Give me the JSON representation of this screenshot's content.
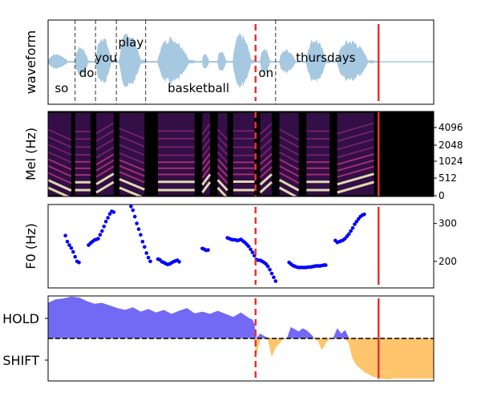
{
  "colors": {
    "waveform": "#a6c8e0",
    "word_boundary": "#333333",
    "dashed_marker": "#e8322f",
    "solid_marker": "#e8322f",
    "f0_points": "#0000ff",
    "hold_fill": "#6b63f5",
    "shift_fill": "#ffc266",
    "baseline": "#000000",
    "spec_dark": "#000000",
    "spec_mid": "#b5367a",
    "spec_bright": "#fcfdbf"
  },
  "chart_data": [
    {
      "type": "line",
      "panel": "waveform",
      "ylabel": "waveform",
      "x_range": [
        0,
        1
      ],
      "dashed_marker_x": 0.538,
      "solid_marker_x": 0.857,
      "word_boundaries": [
        0.07,
        0.123,
        0.177,
        0.253,
        0.59
      ],
      "words": [
        {
          "text": "so",
          "x": 0.035,
          "level": "low"
        },
        {
          "text": "do",
          "x": 0.1,
          "level": "mid"
        },
        {
          "text": "you",
          "x": 0.15,
          "level": "high"
        },
        {
          "text": "play",
          "x": 0.215,
          "level": "top"
        },
        {
          "text": "basketball",
          "x": 0.39,
          "level": "low"
        },
        {
          "text": "on",
          "x": 0.565,
          "level": "mid"
        },
        {
          "text": "thursdays",
          "x": 0.72,
          "level": "high"
        }
      ],
      "segments": [
        [
          0.0,
          0.06,
          0.25
        ],
        [
          0.07,
          0.11,
          0.5
        ],
        [
          0.125,
          0.17,
          0.85
        ],
        [
          0.185,
          0.25,
          0.95
        ],
        [
          0.285,
          0.38,
          0.8
        ],
        [
          0.4,
          0.42,
          0.3
        ],
        [
          0.44,
          0.465,
          0.35
        ],
        [
          0.48,
          0.535,
          0.9
        ],
        [
          0.55,
          0.58,
          0.45
        ],
        [
          0.6,
          0.65,
          0.4
        ],
        [
          0.67,
          0.73,
          0.75
        ],
        [
          0.75,
          0.845,
          0.7
        ]
      ]
    },
    {
      "type": "heatmap",
      "panel": "mel_spectrogram",
      "ylabel": "Mel (Hz)",
      "yticks": [
        "0",
        "512",
        "1024",
        "2048",
        "4096"
      ],
      "active_until_x": 0.87,
      "dashed_marker_x": 0.538,
      "solid_marker_x": 0.857
    },
    {
      "type": "scatter",
      "panel": "f0",
      "ylabel": "F0 (Hz)",
      "ylim": [
        130,
        350
      ],
      "yticks": [
        200,
        300
      ],
      "dashed_marker_x": 0.538,
      "solid_marker_x": 0.857,
      "series": [
        {
          "x": [
            0.045,
            0.05,
            0.055,
            0.06,
            0.065,
            0.07,
            0.075,
            0.08
          ],
          "y": [
            268,
            252,
            243,
            235,
            225,
            212,
            200,
            197
          ]
        },
        {
          "x": [
            0.105,
            0.11,
            0.115,
            0.12,
            0.125,
            0.13,
            0.135,
            0.14,
            0.145,
            0.15,
            0.155,
            0.16,
            0.165,
            0.17
          ],
          "y": [
            243,
            248,
            252,
            256,
            258,
            260,
            270,
            280,
            292,
            305,
            315,
            325,
            332,
            330
          ]
        },
        {
          "x": [
            0.215,
            0.22,
            0.225,
            0.23,
            0.235,
            0.24,
            0.245,
            0.25,
            0.255,
            0.26,
            0.265
          ],
          "y": [
            345,
            335,
            318,
            300,
            285,
            270,
            252,
            238,
            222,
            210,
            200
          ]
        },
        {
          "x": [
            0.285,
            0.29,
            0.295,
            0.3,
            0.305,
            0.31,
            0.315,
            0.32,
            0.325,
            0.33,
            0.335,
            0.34
          ],
          "y": [
            206,
            204,
            199,
            197,
            194,
            192,
            193,
            196,
            199,
            201,
            203,
            199
          ]
        },
        {
          "x": [
            0.4,
            0.405,
            0.41,
            0.415
          ],
          "y": [
            234,
            232,
            229,
            230
          ]
        },
        {
          "x": [
            0.465,
            0.47,
            0.475,
            0.48,
            0.485,
            0.49,
            0.495,
            0.5,
            0.505,
            0.51,
            0.515,
            0.52,
            0.525,
            0.53,
            0.535
          ],
          "y": [
            262,
            260,
            258,
            257,
            257,
            255,
            256,
            258,
            254,
            250,
            245,
            240,
            232,
            224,
            215
          ]
        },
        {
          "x": [
            0.54,
            0.545,
            0.55,
            0.555,
            0.56,
            0.565,
            0.57,
            0.575,
            0.58,
            0.585,
            0.59
          ],
          "y": [
            205,
            203,
            203,
            200,
            197,
            193,
            187,
            178,
            168,
            158,
            148
          ]
        },
        {
          "x": [
            0.625,
            0.63,
            0.635,
            0.64,
            0.645,
            0.65,
            0.655,
            0.66,
            0.665,
            0.67,
            0.675,
            0.68,
            0.685,
            0.69,
            0.695,
            0.7,
            0.705,
            0.71,
            0.715,
            0.72
          ],
          "y": [
            197,
            193,
            189,
            187,
            185,
            184,
            184,
            184,
            184,
            184,
            185,
            185,
            186,
            187,
            188,
            188,
            188,
            189,
            190,
            190
          ]
        },
        {
          "x": [
            0.745,
            0.75,
            0.755,
            0.76,
            0.765,
            0.77,
            0.775,
            0.78,
            0.785,
            0.79,
            0.795,
            0.8,
            0.805,
            0.81,
            0.815,
            0.82
          ],
          "y": [
            255,
            250,
            252,
            254,
            256,
            260,
            266,
            272,
            280,
            288,
            298,
            305,
            312,
            318,
            322,
            324
          ]
        }
      ]
    },
    {
      "type": "area",
      "panel": "turn_taking",
      "yticks": [
        "HOLD",
        "SHIFT"
      ],
      "ylim": [
        -1,
        1
      ],
      "dashed_marker_x": 0.538,
      "solid_marker_x": 0.857,
      "x": [
        0.0,
        0.02,
        0.04,
        0.06,
        0.08,
        0.1,
        0.12,
        0.14,
        0.16,
        0.18,
        0.2,
        0.22,
        0.24,
        0.26,
        0.28,
        0.3,
        0.32,
        0.34,
        0.36,
        0.38,
        0.4,
        0.42,
        0.44,
        0.46,
        0.48,
        0.5,
        0.52,
        0.53,
        0.535,
        0.54,
        0.55,
        0.56,
        0.57,
        0.58,
        0.59,
        0.6,
        0.61,
        0.62,
        0.63,
        0.64,
        0.65,
        0.66,
        0.67,
        0.68,
        0.69,
        0.7,
        0.71,
        0.72,
        0.73,
        0.74,
        0.75,
        0.76,
        0.77,
        0.78,
        0.79,
        0.8,
        0.82,
        0.84,
        0.86,
        0.88,
        0.9,
        0.92,
        0.94,
        0.96,
        0.98,
        1.0
      ],
      "values": [
        0.8,
        0.88,
        0.9,
        0.94,
        0.92,
        0.84,
        0.78,
        0.8,
        0.74,
        0.68,
        0.64,
        0.7,
        0.6,
        0.66,
        0.58,
        0.64,
        0.55,
        0.62,
        0.68,
        0.56,
        0.6,
        0.55,
        0.62,
        0.55,
        0.48,
        0.58,
        0.46,
        0.42,
        0.3,
        -0.35,
        0.1,
        0.05,
        0.0,
        -0.4,
        -0.2,
        -0.1,
        0.0,
        0.0,
        0.25,
        0.2,
        0.15,
        0.22,
        0.18,
        0.1,
        0.0,
        -0.05,
        -0.25,
        -0.1,
        0.0,
        0.0,
        0.22,
        0.1,
        0.18,
        -0.1,
        -0.45,
        -0.6,
        -0.75,
        -0.85,
        -0.9,
        -0.92,
        -0.9,
        -0.9,
        -0.9,
        -0.9,
        -0.9,
        -0.9
      ]
    }
  ]
}
